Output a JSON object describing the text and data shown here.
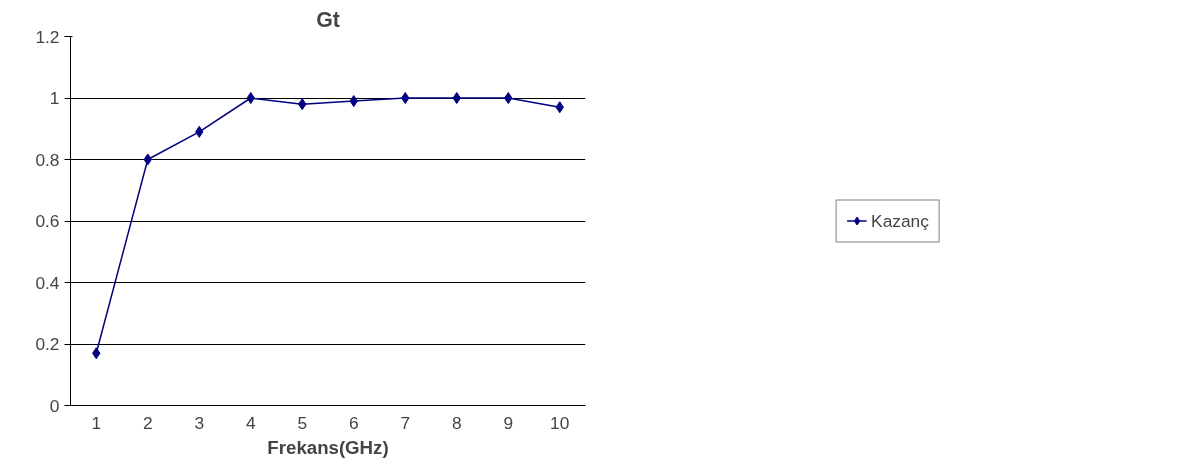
{
  "chart_data": {
    "type": "line",
    "title": "Gt",
    "xlabel": "Frekans(GHz)",
    "categories": [
      "1",
      "2",
      "3",
      "4",
      "5",
      "6",
      "7",
      "8",
      "9",
      "10"
    ],
    "series": [
      {
        "name": "Kazanç",
        "color": "#000080",
        "values": [
          0.17,
          0.8,
          0.89,
          1.0,
          0.98,
          0.99,
          1.0,
          1.0,
          1.0,
          0.97
        ]
      }
    ],
    "ylim": [
      0,
      1.2
    ],
    "yticks": [
      0,
      0.2,
      0.4,
      0.6,
      0.8,
      1,
      1.2
    ],
    "grid": "y",
    "legend": "right",
    "marker": "diamond",
    "line_style": "solid"
  }
}
